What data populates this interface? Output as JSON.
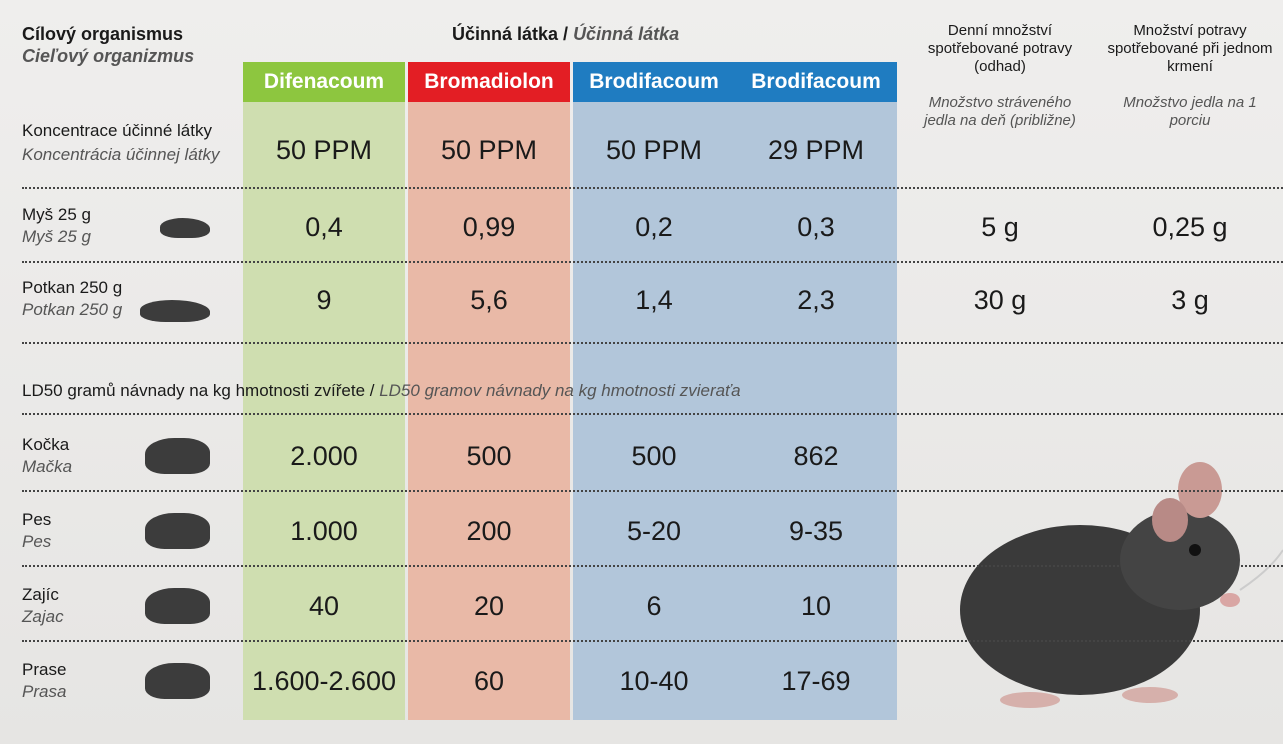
{
  "header": {
    "target_cz": "Cílový organismus",
    "target_sk": "Cieľový organizmus",
    "substance_cz": "Účinná látka /",
    "substance_sk": "Účinná látka",
    "daily_cz": "Denní množství spotřebované potravy (odhad)",
    "daily_sk": "Množstvo stráveného jedla na deň (približne)",
    "per_feeding_cz": "Množství potravy spotřebované při jednom krmení",
    "per_feeding_sk": "Množstvo jedla na 1 porciu"
  },
  "substances": [
    {
      "name": "Difenacoum",
      "color": "#8dc63f",
      "tint": "#cfdeb0"
    },
    {
      "name": "Bromadiolon",
      "color": "#e31e24",
      "tint": "#e9b9a7"
    },
    {
      "name": "Brodifacoum",
      "color": "#1f7cc1",
      "tint": "#b2c6da"
    },
    {
      "name": "Brodifacoum",
      "color": "#1f7cc1",
      "tint": "#b2c6da"
    }
  ],
  "concentration": {
    "cz": "Koncentrace účinné látky",
    "sk": "Koncentrácia účinnej látky",
    "values": [
      "50 PPM",
      "50 PPM",
      "50 PPM",
      "29 PPM"
    ]
  },
  "targets": [
    {
      "cz": "Myš 25 g",
      "sk": "Myš 25 g",
      "values": [
        "0,4",
        "0,99",
        "0,2",
        "0,3"
      ],
      "daily": "5 g",
      "per_feeding": "0,25 g"
    },
    {
      "cz": "Potkan 250 g",
      "sk": "Potkan 250 g",
      "values": [
        "9",
        "5,6",
        "1,4",
        "2,3"
      ],
      "daily": "30 g",
      "per_feeding": "3 g"
    }
  ],
  "ld50_heading": {
    "cz": "LD50 gramů návnady na kg hmotnosti zvířete /",
    "sk": "LD50 gramov návnady na kg hmotnosti zvieraťa"
  },
  "animals": [
    {
      "cz": "Kočka",
      "sk": "Mačka",
      "values": [
        "2.000",
        "500",
        "500",
        "862"
      ]
    },
    {
      "cz": "Pes",
      "sk": "Pes",
      "values": [
        "1.000",
        "200",
        "5-20",
        "9-35"
      ]
    },
    {
      "cz": "Zajíc",
      "sk": "Zajac",
      "values": [
        "40",
        "20",
        "6",
        "10"
      ]
    },
    {
      "cz": "Prase",
      "sk": "Prasa",
      "values": [
        "1.600-2.600",
        "60",
        "10-40",
        "17-69"
      ]
    }
  ]
}
